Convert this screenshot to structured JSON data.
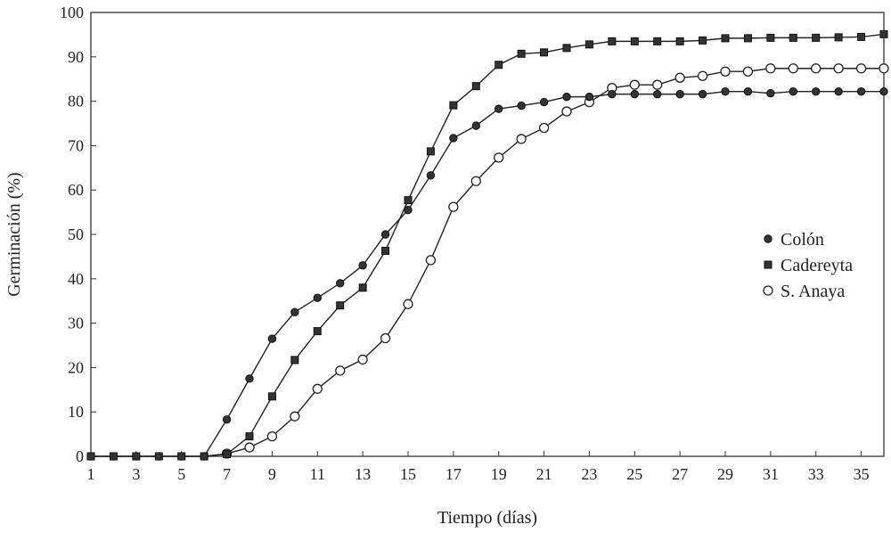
{
  "chart_data": {
    "type": "line",
    "title": "",
    "xlabel": "Tiempo (días)",
    "ylabel": "Germinación (%)",
    "xlim": [
      1,
      36
    ],
    "ylim": [
      0,
      100
    ],
    "xticks": [
      1,
      3,
      5,
      7,
      9,
      11,
      13,
      15,
      17,
      19,
      21,
      23,
      25,
      27,
      29,
      31,
      33,
      35
    ],
    "yticks": [
      0,
      10,
      20,
      30,
      40,
      50,
      60,
      70,
      80,
      90,
      100
    ],
    "grid": false,
    "legend_position": "right",
    "x": [
      1,
      2,
      3,
      4,
      5,
      6,
      7,
      8,
      9,
      10,
      11,
      12,
      13,
      14,
      15,
      16,
      17,
      18,
      19,
      20,
      21,
      22,
      23,
      24,
      25,
      26,
      27,
      28,
      29,
      30,
      31,
      32,
      33,
      34,
      35,
      36
    ],
    "series": [
      {
        "name": "Colón",
        "marker": "filled-circle",
        "values": [
          0,
          0,
          0,
          0,
          0,
          0,
          8.3,
          17.5,
          26.5,
          32.5,
          35.7,
          39,
          43,
          50,
          55.5,
          63.3,
          71.7,
          74.5,
          78.3,
          79,
          79.8,
          81,
          81,
          81.6,
          81.6,
          81.6,
          81.6,
          81.6,
          82.2,
          82.2,
          81.8,
          82.2,
          82.2,
          82.2,
          82.2,
          82.2
        ]
      },
      {
        "name": "Cadereyta",
        "marker": "filled-square",
        "values": [
          0,
          0,
          0,
          0,
          0,
          0,
          0.5,
          4.5,
          13.5,
          21.7,
          28.2,
          34,
          38,
          46.3,
          57.7,
          68.7,
          79.1,
          83.4,
          88.2,
          90.7,
          91,
          92,
          92.8,
          93.5,
          93.5,
          93.5,
          93.5,
          93.7,
          94.2,
          94.2,
          94.3,
          94.3,
          94.3,
          94.4,
          94.5,
          95.1
        ]
      },
      {
        "name": "S. Anaya",
        "marker": "open-circle",
        "values": [
          0,
          0,
          0,
          0,
          0,
          0,
          0.6,
          2,
          4.5,
          9,
          15.2,
          19.3,
          21.8,
          26.6,
          34.3,
          44.2,
          56.2,
          62,
          67.3,
          71.5,
          74,
          77.7,
          79.8,
          83,
          83.7,
          83.7,
          85.3,
          85.7,
          86.7,
          86.7,
          87.4,
          87.4,
          87.4,
          87.4,
          87.4,
          87.4
        ]
      }
    ]
  }
}
